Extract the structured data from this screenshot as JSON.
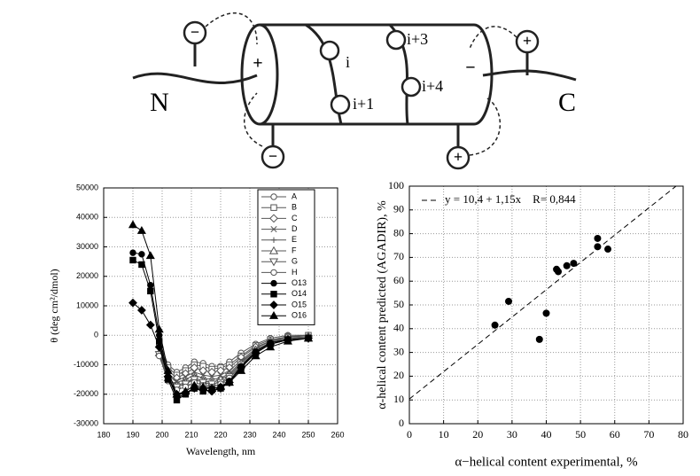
{
  "diagram": {
    "termini": [
      "N",
      "C"
    ],
    "residues": [
      "i",
      "i+1",
      "i+3",
      "i+4"
    ],
    "dipoles": [
      "+",
      "−"
    ],
    "charges": [
      "−",
      "−",
      "+",
      "+"
    ]
  },
  "chart_data": [
    {
      "type": "line",
      "x_label": "Wavelength, nm",
      "y_label": "θ (deg cm²/dmol)",
      "xlim": [
        180,
        260
      ],
      "xticks": [
        180,
        190,
        200,
        210,
        220,
        230,
        240,
        250,
        260
      ],
      "ylim": [
        -30000,
        50000
      ],
      "yticks": [
        -30000,
        -20000,
        -10000,
        0,
        10000,
        20000,
        30000,
        40000,
        50000
      ],
      "grid": true,
      "legend": "top-right",
      "x": [
        190,
        193,
        196,
        199,
        202,
        205,
        208,
        211,
        214,
        217,
        220,
        223,
        227,
        232,
        237,
        243,
        250
      ],
      "series": [
        {
          "name": "A",
          "color": "#555555",
          "marker": "circle-open",
          "values": [
            null,
            null,
            null,
            -2000,
            -10000,
            -12500,
            -11000,
            -9000,
            -9500,
            -10500,
            -10500,
            -9000,
            -6000,
            -3000,
            -1000,
            0,
            0
          ]
        },
        {
          "name": "B",
          "color": "#555555",
          "marker": "square-open",
          "values": [
            null,
            null,
            null,
            -3000,
            -11000,
            -13500,
            -12000,
            -10000,
            -10500,
            -11500,
            -11000,
            -10000,
            -7000,
            -3500,
            -1500,
            -500,
            0
          ]
        },
        {
          "name": "C",
          "color": "#555555",
          "marker": "diamond-open",
          "values": [
            null,
            null,
            null,
            -4000,
            -12000,
            -14500,
            -13000,
            -11000,
            -12000,
            -12500,
            -12000,
            -11000,
            -7500,
            -4000,
            -2000,
            -500,
            -500
          ]
        },
        {
          "name": "D",
          "color": "#555555",
          "marker": "x",
          "values": [
            null,
            null,
            null,
            -5000,
            -13000,
            -15500,
            -14000,
            -12500,
            -13500,
            -14000,
            -13500,
            -12000,
            -8500,
            -4500,
            -2000,
            -1000,
            -500
          ]
        },
        {
          "name": "E",
          "color": "#555555",
          "marker": "plus",
          "values": [
            null,
            null,
            null,
            -5500,
            -13500,
            -16000,
            -15000,
            -13500,
            -14500,
            -15000,
            -14500,
            -13000,
            -9000,
            -5000,
            -2500,
            -1000,
            -500
          ]
        },
        {
          "name": "F",
          "color": "#555555",
          "marker": "triangle-open",
          "values": [
            null,
            null,
            null,
            -6000,
            -14500,
            -17000,
            -16000,
            -14500,
            -15500,
            -16000,
            -15000,
            -13500,
            -9500,
            -5000,
            -2500,
            -1000,
            -1000
          ]
        },
        {
          "name": "G",
          "color": "#555555",
          "marker": "triangle-down-open",
          "values": [
            null,
            null,
            null,
            -6500,
            -15000,
            -17500,
            -16500,
            -15000,
            -16000,
            -16500,
            -16000,
            -14000,
            -10000,
            -5500,
            -3000,
            -1500,
            -1000
          ]
        },
        {
          "name": "H",
          "color": "#555555",
          "marker": "circle-x",
          "values": [
            null,
            null,
            null,
            -7000,
            -15500,
            -18500,
            -17500,
            -16000,
            -17000,
            -17500,
            -16500,
            -14500,
            -10500,
            -6000,
            -3000,
            -1500,
            -1000
          ]
        },
        {
          "name": "O13",
          "color": "#000000",
          "marker": "circle",
          "values": [
            28000,
            27500,
            17000,
            0,
            -14000,
            -21000,
            -20000,
            -17500,
            -18000,
            -18000,
            -17500,
            -15500,
            -10500,
            -5500,
            -2500,
            -1500,
            -1000
          ]
        },
        {
          "name": "O14",
          "color": "#000000",
          "marker": "square",
          "values": [
            25500,
            24000,
            15000,
            -2000,
            -15000,
            -22000,
            -20000,
            -18000,
            -19000,
            -18500,
            -18000,
            -16000,
            -11000,
            -6000,
            -3000,
            -1500,
            -1000
          ]
        },
        {
          "name": "O15",
          "color": "#000000",
          "marker": "diamond",
          "values": [
            11000,
            8500,
            3500,
            -4000,
            -14000,
            -20000,
            -19500,
            -18000,
            -18500,
            -19000,
            -18000,
            -16000,
            -11000,
            -6000,
            -3000,
            -1500,
            -1000
          ]
        },
        {
          "name": "O16",
          "color": "#000000",
          "marker": "triangle",
          "values": [
            37500,
            35500,
            27000,
            2000,
            -12000,
            -20000,
            -19000,
            -17000,
            -17500,
            -18000,
            -17500,
            -16000,
            -12000,
            -7000,
            -4000,
            -2000,
            -1000
          ]
        }
      ]
    },
    {
      "type": "scatter",
      "x_label": "α−helical content experimental, %",
      "y_label": "α-helical content predicted (AGADIR), %",
      "annotation": "y = 10,4 + 1,15x    R= 0,844",
      "fit_line": {
        "intercept": 10.4,
        "slope": 1.15
      },
      "xlim": [
        0,
        80
      ],
      "xticks": [
        0,
        10,
        20,
        30,
        40,
        50,
        60,
        70,
        80
      ],
      "ylim": [
        0,
        100
      ],
      "yticks": [
        0,
        10,
        20,
        30,
        40,
        50,
        60,
        70,
        80,
        90,
        100
      ],
      "grid": true,
      "color": "#000000",
      "x": [
        25,
        29,
        38,
        40,
        43,
        43.5,
        46,
        48,
        55,
        55,
        58
      ],
      "values": [
        41.5,
        51.5,
        35.5,
        46.5,
        65,
        64,
        66.5,
        67.5,
        78,
        74.5,
        73.5
      ]
    }
  ]
}
